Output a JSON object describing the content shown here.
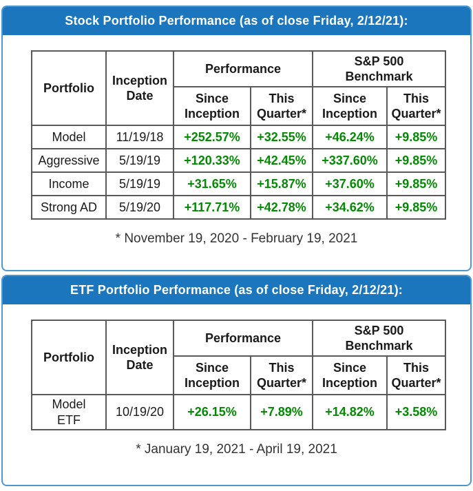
{
  "colors": {
    "header_bar_blue": "#1b76bd",
    "section_border_blue": "#4e96cc",
    "table_outer_border": "#222222",
    "table_cell_border": "#595959",
    "positive_value_green": "#028a02",
    "text_dark": "#1a1a1a",
    "header_text_white": "#ffffff"
  },
  "sections": [
    {
      "title": "Stock Portfolio Performance (as of close Friday, 2/12/21):",
      "table": {
        "portfolio_header": "Portfolio",
        "inception_header": "Inception\nDate",
        "performance_group_header": "Performance",
        "benchmark_group_header": "S&P 500\nBenchmark",
        "sub_headers": [
          "Since\nInception",
          "This\nQuarter*",
          "Since\nInception",
          "This\nQuarter*"
        ],
        "rows": [
          {
            "portfolio": "Model",
            "inception_date": "11/19/18",
            "values": [
              "+252.57%",
              "+32.55%",
              "+46.24%",
              "+9.85%"
            ]
          },
          {
            "portfolio": "Aggressive",
            "inception_date": "5/19/19",
            "values": [
              "+120.33%",
              "+42.45%",
              "+337.60%",
              "+9.85%"
            ]
          },
          {
            "portfolio": "Income",
            "inception_date": "5/19/19",
            "values": [
              "+31.65%",
              "+15.87%",
              "+37.60%",
              "+9.85%"
            ]
          },
          {
            "portfolio": "Strong AD",
            "inception_date": "5/19/20",
            "values": [
              "+117.71%",
              "+42.78%",
              "+34.62%",
              "+9.85%"
            ]
          }
        ]
      },
      "footnote": "* November 19, 2020 - February 19, 2021"
    },
    {
      "title": "ETF Portfolio Performance (as of close Friday, 2/12/21):",
      "table": {
        "portfolio_header": "Portfolio",
        "inception_header": "Inception\nDate",
        "performance_group_header": "Performance",
        "benchmark_group_header": "S&P 500\nBenchmark",
        "sub_headers": [
          "Since\nInception",
          "This\nQuarter*",
          "Since\nInception",
          "This\nQuarter*"
        ],
        "rows": [
          {
            "portfolio": "Model\nETF",
            "inception_date": "10/19/20",
            "values": [
              "+26.15%",
              "+7.89%",
              "+14.82%",
              "+3.58%"
            ]
          }
        ]
      },
      "footnote": "* January 19, 2021 - April 19, 2021"
    }
  ]
}
